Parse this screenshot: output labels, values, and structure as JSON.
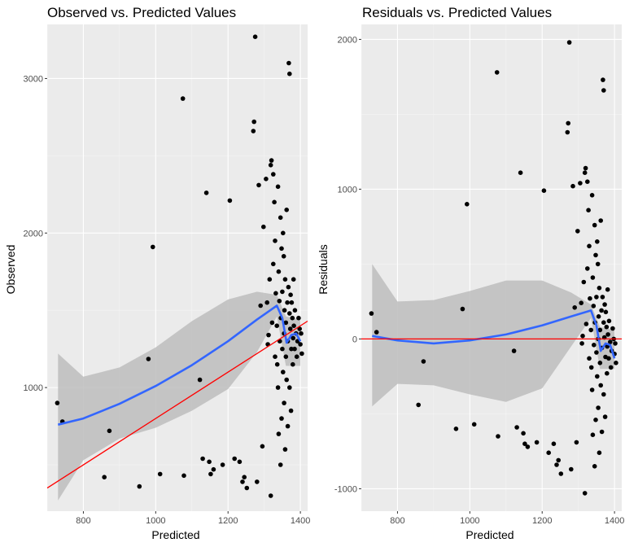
{
  "colors": {
    "panel_bg": "#ebebeb",
    "grid_major": "#ffffff",
    "grid_minor": "#f5f5f5",
    "point": "#000000",
    "smooth": "#3366ff",
    "ribbon": "#bdbdbd",
    "ref_line": "#ff0000"
  },
  "chart_data": [
    {
      "type": "scatter",
      "title": "Observed vs. Predicted Values",
      "xlabel": "Predicted",
      "ylabel": "Observed",
      "xlim": [
        700,
        1420
      ],
      "ylim": [
        200,
        3350
      ],
      "x_ticks": [
        800,
        1000,
        1200,
        1400
      ],
      "y_ticks": [
        1000,
        2000,
        3000
      ],
      "grid": true,
      "points": [
        [
          728,
          900
        ],
        [
          742,
          780
        ],
        [
          858,
          420
        ],
        [
          872,
          720
        ],
        [
          955,
          360
        ],
        [
          980,
          1185
        ],
        [
          992,
          1910
        ],
        [
          1012,
          440
        ],
        [
          1075,
          2870
        ],
        [
          1078,
          430
        ],
        [
          1122,
          1050
        ],
        [
          1130,
          540
        ],
        [
          1140,
          2260
        ],
        [
          1148,
          520
        ],
        [
          1152,
          440
        ],
        [
          1160,
          470
        ],
        [
          1185,
          500
        ],
        [
          1205,
          2210
        ],
        [
          1218,
          540
        ],
        [
          1232,
          520
        ],
        [
          1240,
          390
        ],
        [
          1245,
          420
        ],
        [
          1252,
          350
        ],
        [
          1270,
          2660
        ],
        [
          1272,
          2720
        ],
        [
          1275,
          3270
        ],
        [
          1280,
          390
        ],
        [
          1285,
          2310
        ],
        [
          1290,
          1530
        ],
        [
          1295,
          620
        ],
        [
          1298,
          2040
        ],
        [
          1305,
          2350
        ],
        [
          1308,
          1550
        ],
        [
          1310,
          1280
        ],
        [
          1312,
          1340
        ],
        [
          1315,
          1700
        ],
        [
          1318,
          2440
        ],
        [
          1318,
          300
        ],
        [
          1320,
          2470
        ],
        [
          1322,
          1420
        ],
        [
          1325,
          2380
        ],
        [
          1325,
          1800
        ],
        [
          1328,
          2200
        ],
        [
          1330,
          1950
        ],
        [
          1330,
          1200
        ],
        [
          1332,
          1610
        ],
        [
          1335,
          1400
        ],
        [
          1336,
          1150
        ],
        [
          1338,
          2300
        ],
        [
          1338,
          1000
        ],
        [
          1340,
          1750
        ],
        [
          1340,
          700
        ],
        [
          1342,
          1560
        ],
        [
          1343,
          1300
        ],
        [
          1345,
          2100
        ],
        [
          1345,
          500
        ],
        [
          1346,
          1450
        ],
        [
          1348,
          1900
        ],
        [
          1348,
          800
        ],
        [
          1350,
          1620
        ],
        [
          1350,
          1250
        ],
        [
          1352,
          1100
        ],
        [
          1352,
          2000
        ],
        [
          1354,
          1850
        ],
        [
          1355,
          1350
        ],
        [
          1355,
          900
        ],
        [
          1356,
          1500
        ],
        [
          1358,
          1700
        ],
        [
          1358,
          600
        ],
        [
          1360,
          1420
        ],
        [
          1360,
          1200
        ],
        [
          1362,
          2150
        ],
        [
          1362,
          1050
        ],
        [
          1364,
          1550
        ],
        [
          1365,
          1300
        ],
        [
          1365,
          750
        ],
        [
          1367,
          1650
        ],
        [
          1368,
          3100
        ],
        [
          1370,
          3030
        ],
        [
          1370,
          1480
        ],
        [
          1370,
          1000
        ],
        [
          1372,
          1380
        ],
        [
          1373,
          1600
        ],
        [
          1374,
          850
        ],
        [
          1375,
          1250
        ],
        [
          1376,
          1550
        ],
        [
          1378,
          1450
        ],
        [
          1379,
          1150
        ],
        [
          1380,
          1320
        ],
        [
          1381,
          1700
        ],
        [
          1382,
          1400
        ],
        [
          1384,
          1250
        ],
        [
          1385,
          1500
        ],
        [
          1388,
          1350
        ],
        [
          1390,
          1200
        ],
        [
          1392,
          1300
        ],
        [
          1395,
          1450
        ],
        [
          1398,
          1380
        ],
        [
          1400,
          1280
        ],
        [
          1402,
          1350
        ],
        [
          1404,
          1220
        ]
      ],
      "smooth_fit": [
        [
          730,
          760
        ],
        [
          800,
          800
        ],
        [
          900,
          895
        ],
        [
          1000,
          1010
        ],
        [
          1100,
          1145
        ],
        [
          1200,
          1300
        ],
        [
          1280,
          1440
        ],
        [
          1335,
          1530
        ],
        [
          1350,
          1450
        ],
        [
          1362,
          1290
        ],
        [
          1375,
          1340
        ],
        [
          1388,
          1350
        ],
        [
          1400,
          1300
        ]
      ],
      "ribbon": {
        "x": [
          730,
          800,
          900,
          1000,
          1100,
          1200,
          1280,
          1335,
          1360,
          1400
        ],
        "upper": [
          1220,
          1070,
          1130,
          1260,
          1430,
          1570,
          1620,
          1600,
          1460,
          1440
        ],
        "lower": [
          270,
          530,
          670,
          740,
          850,
          990,
          1230,
          1460,
          1140,
          1140
        ]
      },
      "ref_line": {
        "intercept": -700,
        "slope": 1.5
      }
    },
    {
      "type": "scatter",
      "title": "Residuals vs. Predicted Values",
      "xlabel": "Predicted",
      "ylabel": "Residuals",
      "xlim": [
        700,
        1420
      ],
      "ylim": [
        -1150,
        2100
      ],
      "x_ticks": [
        800,
        1000,
        1200,
        1400
      ],
      "y_ticks": [
        -1000,
        0,
        1000,
        2000
      ],
      "grid": true,
      "points": [
        [
          728,
          170
        ],
        [
          742,
          45
        ],
        [
          858,
          -440
        ],
        [
          872,
          -150
        ],
        [
          962,
          -600
        ],
        [
          980,
          200
        ],
        [
          992,
          900
        ],
        [
          1012,
          -570
        ],
        [
          1075,
          1780
        ],
        [
          1078,
          -650
        ],
        [
          1122,
          -80
        ],
        [
          1130,
          -590
        ],
        [
          1140,
          1110
        ],
        [
          1148,
          -630
        ],
        [
          1152,
          -700
        ],
        [
          1160,
          -720
        ],
        [
          1185,
          -690
        ],
        [
          1205,
          990
        ],
        [
          1218,
          -760
        ],
        [
          1232,
          -700
        ],
        [
          1240,
          -840
        ],
        [
          1245,
          -810
        ],
        [
          1252,
          -900
        ],
        [
          1270,
          1380
        ],
        [
          1272,
          1440
        ],
        [
          1275,
          1980
        ],
        [
          1280,
          -870
        ],
        [
          1285,
          1020
        ],
        [
          1290,
          210
        ],
        [
          1295,
          -690
        ],
        [
          1298,
          720
        ],
        [
          1305,
          1040
        ],
        [
          1308,
          240
        ],
        [
          1310,
          -30
        ],
        [
          1312,
          20
        ],
        [
          1315,
          380
        ],
        [
          1318,
          1110
        ],
        [
          1318,
          -1030
        ],
        [
          1320,
          1140
        ],
        [
          1322,
          100
        ],
        [
          1325,
          1050
        ],
        [
          1325,
          470
        ],
        [
          1328,
          860
        ],
        [
          1330,
          620
        ],
        [
          1330,
          -130
        ],
        [
          1332,
          270
        ],
        [
          1335,
          60
        ],
        [
          1336,
          -190
        ],
        [
          1338,
          960
        ],
        [
          1338,
          -340
        ],
        [
          1340,
          410
        ],
        [
          1340,
          -640
        ],
        [
          1342,
          220
        ],
        [
          1343,
          -40
        ],
        [
          1345,
          760
        ],
        [
          1345,
          -850
        ],
        [
          1346,
          110
        ],
        [
          1348,
          560
        ],
        [
          1348,
          -540
        ],
        [
          1350,
          280
        ],
        [
          1350,
          -90
        ],
        [
          1352,
          -250
        ],
        [
          1352,
          650
        ],
        [
          1354,
          500
        ],
        [
          1355,
          0
        ],
        [
          1355,
          -460
        ],
        [
          1356,
          150
        ],
        [
          1358,
          340
        ],
        [
          1358,
          -760
        ],
        [
          1360,
          60
        ],
        [
          1360,
          -160
        ],
        [
          1362,
          790
        ],
        [
          1362,
          -310
        ],
        [
          1364,
          190
        ],
        [
          1365,
          -60
        ],
        [
          1365,
          -620
        ],
        [
          1367,
          280
        ],
        [
          1368,
          1730
        ],
        [
          1370,
          1660
        ],
        [
          1370,
          110
        ],
        [
          1370,
          -370
        ],
        [
          1372,
          10
        ],
        [
          1373,
          230
        ],
        [
          1374,
          -520
        ],
        [
          1375,
          -120
        ],
        [
          1376,
          180
        ],
        [
          1378,
          80
        ],
        [
          1379,
          -230
        ],
        [
          1380,
          -50
        ],
        [
          1381,
          330
        ],
        [
          1382,
          30
        ],
        [
          1384,
          -130
        ],
        [
          1385,
          120
        ],
        [
          1388,
          -20
        ],
        [
          1390,
          -190
        ],
        [
          1392,
          -80
        ],
        [
          1395,
          70
        ],
        [
          1398,
          0
        ],
        [
          1400,
          -100
        ],
        [
          1402,
          -30
        ],
        [
          1404,
          -160
        ]
      ],
      "smooth_fit": [
        [
          730,
          20
        ],
        [
          800,
          -10
        ],
        [
          900,
          -30
        ],
        [
          1000,
          -10
        ],
        [
          1100,
          30
        ],
        [
          1200,
          90
        ],
        [
          1280,
          150
        ],
        [
          1335,
          190
        ],
        [
          1350,
          90
        ],
        [
          1362,
          -80
        ],
        [
          1375,
          -30
        ],
        [
          1388,
          -40
        ],
        [
          1400,
          -130
        ]
      ],
      "ribbon": {
        "x": [
          730,
          800,
          900,
          1000,
          1100,
          1200,
          1280,
          1335,
          1360,
          1400
        ],
        "upper": [
          500,
          250,
          260,
          320,
          390,
          390,
          310,
          230,
          80,
          60
        ],
        "lower": [
          -450,
          -300,
          -310,
          -370,
          -420,
          -330,
          -50,
          140,
          -200,
          -200
        ]
      },
      "ref_line": {
        "intercept": 0,
        "slope": 0
      }
    }
  ]
}
